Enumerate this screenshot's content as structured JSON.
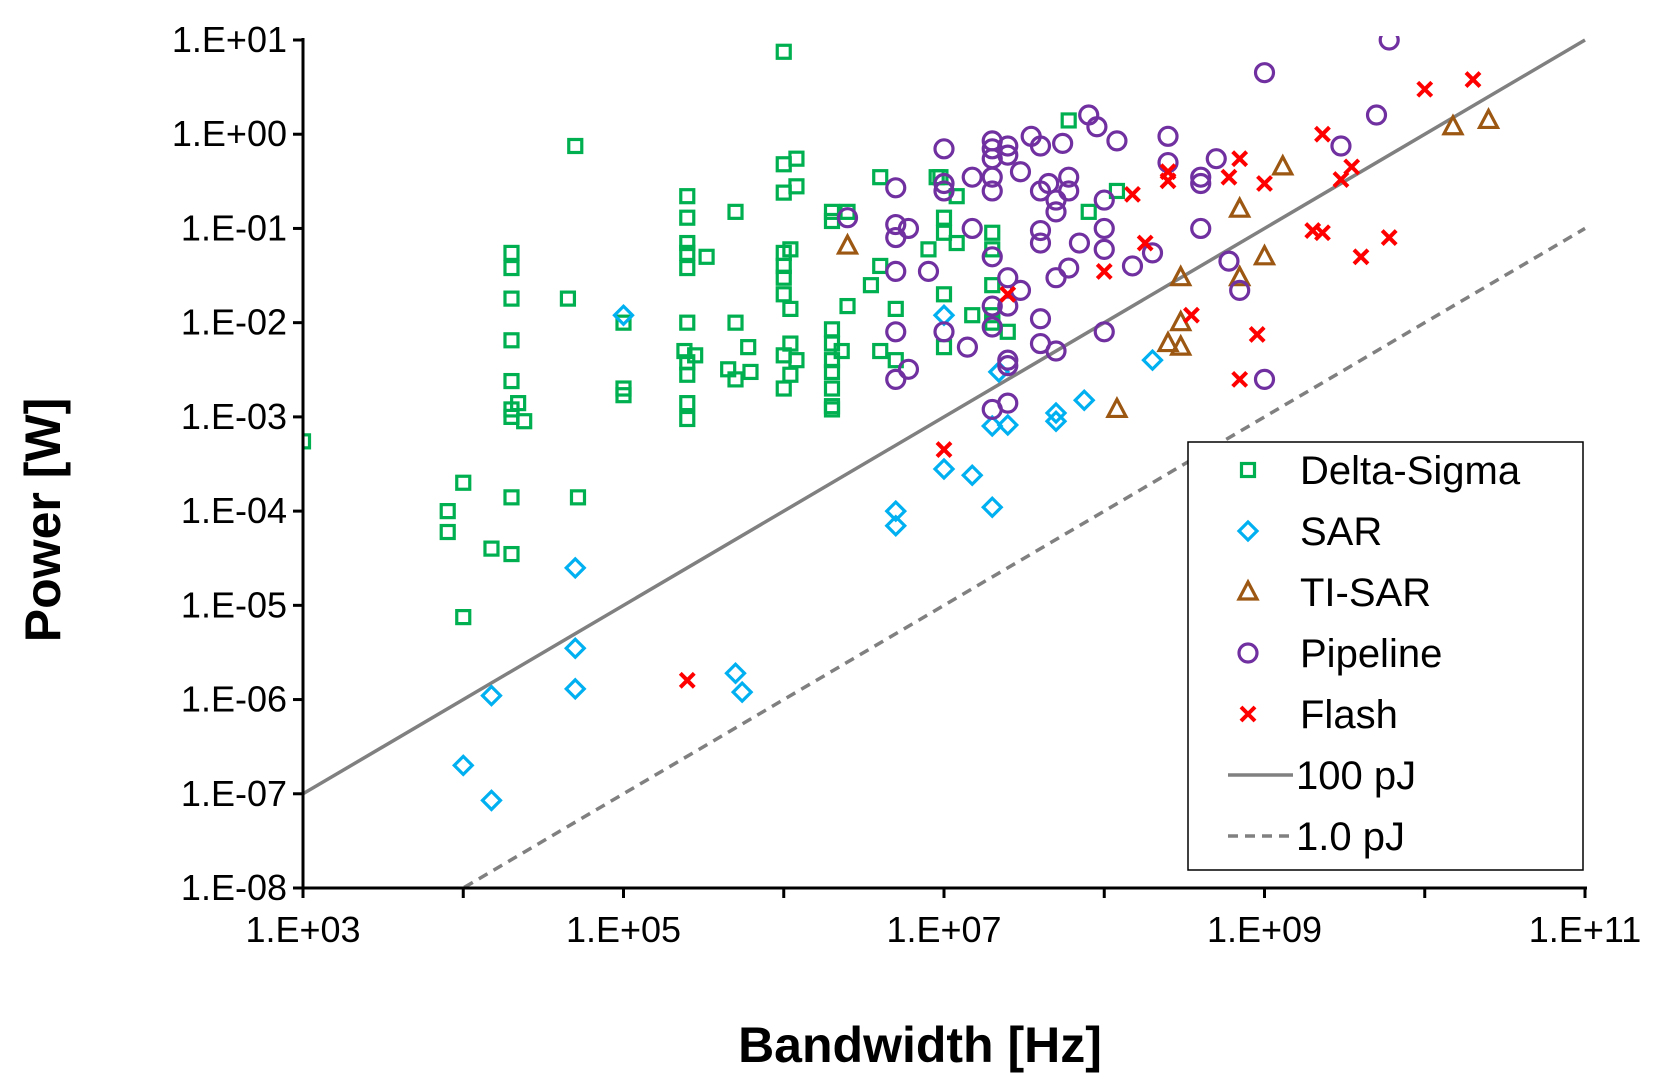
{
  "chart_data": {
    "type": "scatter",
    "xlabel": "Bandwidth [Hz]",
    "ylabel": "Power [W]",
    "x_scale": "log",
    "y_scale": "log",
    "xlim": [
      1000,
      100000000000
    ],
    "ylim": [
      1e-08,
      10
    ],
    "x_ticks": [
      "1.E+03",
      "1.E+05",
      "1.E+07",
      "1.E+09",
      "1.E+11"
    ],
    "y_ticks": [
      "1.E+01",
      "1.E+00",
      "1.E-01",
      "1.E-02",
      "1.E-03",
      "1.E-04",
      "1.E-05",
      "1.E-06",
      "1.E-07",
      "1.E-08"
    ],
    "grid": false,
    "legend_position": "bottom-right",
    "series": [
      {
        "name": "Delta-Sigma",
        "marker": "square",
        "color": "#00b050",
        "points": [
          [
            1000,
            0.00055
          ],
          [
            8000,
            0.0001
          ],
          [
            8000,
            6e-05
          ],
          [
            10000,
            0.0002
          ],
          [
            10000,
            7.5e-06
          ],
          [
            15000,
            4e-05
          ],
          [
            20000,
            3.5e-05
          ],
          [
            20000,
            0.00014
          ],
          [
            20000,
            0.0012
          ],
          [
            20000,
            0.001
          ],
          [
            20000,
            0.0024
          ],
          [
            20000,
            0.0065
          ],
          [
            20000,
            0.018
          ],
          [
            20000,
            0.038
          ],
          [
            20000,
            0.055
          ],
          [
            22000,
            0.0014
          ],
          [
            24000,
            0.0009
          ],
          [
            45000,
            0.018
          ],
          [
            50000,
            0.75
          ],
          [
            52000,
            0.00014
          ],
          [
            100000,
            0.01
          ],
          [
            100000,
            0.002
          ],
          [
            100000,
            0.0017
          ],
          [
            250000,
            0.22
          ],
          [
            250000,
            0.13
          ],
          [
            250000,
            0.07
          ],
          [
            250000,
            0.055
          ],
          [
            250000,
            0.038
          ],
          [
            250000,
            0.01
          ],
          [
            240000,
            0.005
          ],
          [
            250000,
            0.0038
          ],
          [
            250000,
            0.0028
          ],
          [
            250000,
            0.0014
          ],
          [
            250000,
            0.00095
          ],
          [
            330000,
            0.05
          ],
          [
            280000,
            0.0045
          ],
          [
            500000,
            0.15
          ],
          [
            500000,
            0.01
          ],
          [
            600000,
            0.0055
          ],
          [
            450000,
            0.0032
          ],
          [
            500000,
            0.0025
          ],
          [
            620000,
            0.003
          ],
          [
            1000000,
            7.5
          ],
          [
            1000000,
            0.48
          ],
          [
            1000000,
            0.24
          ],
          [
            1200000,
            0.55
          ],
          [
            1200000,
            0.28
          ],
          [
            1000000,
            0.055
          ],
          [
            1100000,
            0.06
          ],
          [
            1000000,
            0.04
          ],
          [
            1000000,
            0.03
          ],
          [
            1000000,
            0.02
          ],
          [
            1100000,
            0.014
          ],
          [
            1100000,
            0.006
          ],
          [
            1000000,
            0.0045
          ],
          [
            1100000,
            0.0028
          ],
          [
            1000000,
            0.002
          ],
          [
            1200000,
            0.004
          ],
          [
            2000000,
            0.15
          ],
          [
            2000000,
            0.12
          ],
          [
            2500000,
            0.15
          ],
          [
            2000000,
            0.0085
          ],
          [
            2000000,
            0.006
          ],
          [
            2000000,
            0.004
          ],
          [
            2000000,
            0.003
          ],
          [
            2000000,
            0.002
          ],
          [
            2000000,
            0.0013
          ],
          [
            2000000,
            0.0012
          ],
          [
            2300000,
            0.005
          ],
          [
            2500000,
            0.015
          ],
          [
            3500000,
            0.025
          ],
          [
            4000000,
            0.04
          ],
          [
            4000000,
            0.35
          ],
          [
            4000000,
            0.005
          ],
          [
            5000000,
            0.014
          ],
          [
            5000000,
            0.004
          ],
          [
            8000000,
            0.06
          ],
          [
            9000000,
            0.35
          ],
          [
            9500000,
            0.35
          ],
          [
            10000000,
            0.13
          ],
          [
            10000000,
            0.09
          ],
          [
            10000000,
            0.02
          ],
          [
            10000000,
            0.0055
          ],
          [
            12000000,
            0.22
          ],
          [
            12000000,
            0.07
          ],
          [
            15000000,
            0.012
          ],
          [
            20000000,
            0.09
          ],
          [
            20000000,
            0.06
          ],
          [
            20000000,
            0.025
          ],
          [
            20000000,
            0.012
          ],
          [
            20000000,
            0.01
          ],
          [
            25000000,
            0.008
          ],
          [
            60000000,
            1.4
          ],
          [
            80000000,
            0.15
          ],
          [
            120000000,
            0.25
          ]
        ]
      },
      {
        "name": "SAR",
        "marker": "diamond",
        "color": "#00b0f0",
        "points": [
          [
            10000,
            2e-07
          ],
          [
            15000,
            8.5e-08
          ],
          [
            15000,
            1.1e-06
          ],
          [
            50000,
            2.5e-05
          ],
          [
            50000,
            3.5e-06
          ],
          [
            50000,
            1.3e-06
          ],
          [
            100000,
            0.012
          ],
          [
            500000,
            1.9e-06
          ],
          [
            550000,
            1.2e-06
          ],
          [
            5000000,
            0.0001
          ],
          [
            5000000,
            7e-05
          ],
          [
            10000000,
            0.00028
          ],
          [
            10000000,
            0.012
          ],
          [
            15000000,
            0.00024
          ],
          [
            20000000,
            0.00011
          ],
          [
            20000000,
            0.0008
          ],
          [
            25000000,
            0.00082
          ],
          [
            22000000,
            0.003
          ],
          [
            50000000,
            0.0011
          ],
          [
            50000000,
            0.0009
          ],
          [
            75000000,
            0.0015
          ],
          [
            200000000,
            0.004
          ]
        ]
      },
      {
        "name": "TI-SAR",
        "marker": "triangle",
        "color": "#9c5712",
        "points": [
          [
            2500000,
            0.065
          ],
          [
            120000000,
            0.0012
          ],
          [
            250000000,
            0.006
          ],
          [
            300000000,
            0.03
          ],
          [
            300000000,
            0.01
          ],
          [
            300000000,
            0.0055
          ],
          [
            700000000,
            0.03
          ],
          [
            700000000,
            0.16
          ],
          [
            1000000000,
            0.05
          ],
          [
            1300000000,
            0.45
          ],
          [
            15000000000,
            1.2
          ],
          [
            25000000000,
            1.4
          ]
        ]
      },
      {
        "name": "Pipeline",
        "marker": "circle",
        "color": "#7030a0",
        "points": [
          [
            2500000,
            0.13
          ],
          [
            5000000,
            0.27
          ],
          [
            5000000,
            0.11
          ],
          [
            6000000,
            0.1
          ],
          [
            5000000,
            0.08
          ],
          [
            5000000,
            0.035
          ],
          [
            5000000,
            0.008
          ],
          [
            5000000,
            0.0025
          ],
          [
            6000000,
            0.0032
          ],
          [
            8000000,
            0.035
          ],
          [
            10000000,
            0.7
          ],
          [
            10000000,
            0.25
          ],
          [
            10000000,
            0.3
          ],
          [
            10000000,
            0.008
          ],
          [
            15000000,
            0.35
          ],
          [
            15000000,
            0.1
          ],
          [
            14000000,
            0.0055
          ],
          [
            20000000,
            0.85
          ],
          [
            20000000,
            0.7
          ],
          [
            20000000,
            0.55
          ],
          [
            20000000,
            0.35
          ],
          [
            20000000,
            0.25
          ],
          [
            20000000,
            0.05
          ],
          [
            20000000,
            0.015
          ],
          [
            20000000,
            0.009
          ],
          [
            20000000,
            0.0012
          ],
          [
            25000000,
            0.75
          ],
          [
            25000000,
            0.6
          ],
          [
            25000000,
            0.03
          ],
          [
            25000000,
            0.015
          ],
          [
            25000000,
            0.004
          ],
          [
            25000000,
            0.0035
          ],
          [
            25000000,
            0.0014
          ],
          [
            30000000,
            0.4
          ],
          [
            30000000,
            0.022
          ],
          [
            35000000,
            0.95
          ],
          [
            40000000,
            0.75
          ],
          [
            40000000,
            0.25
          ],
          [
            40000000,
            0.095
          ],
          [
            40000000,
            0.07
          ],
          [
            40000000,
            0.011
          ],
          [
            40000000,
            0.006
          ],
          [
            45000000,
            0.3
          ],
          [
            50000000,
            0.2
          ],
          [
            50000000,
            0.15
          ],
          [
            55000000,
            0.8
          ],
          [
            50000000,
            0.03
          ],
          [
            50000000,
            0.005
          ],
          [
            60000000,
            0.35
          ],
          [
            60000000,
            0.25
          ],
          [
            60000000,
            0.038
          ],
          [
            70000000,
            0.07
          ],
          [
            80000000,
            1.6
          ],
          [
            90000000,
            1.2
          ],
          [
            100000000,
            0.2
          ],
          [
            100000000,
            0.1
          ],
          [
            100000000,
            0.06
          ],
          [
            100000000,
            0.008
          ],
          [
            120000000,
            0.85
          ],
          [
            150000000,
            0.04
          ],
          [
            200000000,
            0.055
          ],
          [
            250000000,
            0.95
          ],
          [
            250000000,
            0.5
          ],
          [
            400000000,
            0.35
          ],
          [
            400000000,
            0.3
          ],
          [
            400000000,
            0.1
          ],
          [
            500000000,
            0.55
          ],
          [
            600000000,
            0.045
          ],
          [
            700000000,
            0.022
          ],
          [
            1000000000,
            4.5
          ],
          [
            1000000000,
            0.0025
          ],
          [
            3000000000,
            0.75
          ],
          [
            5000000000,
            1.6
          ],
          [
            6000000000,
            10
          ]
        ]
      },
      {
        "name": "Flash",
        "marker": "x",
        "color": "#ff0000",
        "points": [
          [
            250000,
            1.6e-06
          ],
          [
            10000000,
            0.00045
          ],
          [
            25000000,
            0.02
          ],
          [
            100000000,
            0.035
          ],
          [
            150000000,
            0.23
          ],
          [
            180000000,
            0.07
          ],
          [
            250000000,
            0.4
          ],
          [
            250000000,
            0.32
          ],
          [
            350000000,
            0.012
          ],
          [
            600000000,
            0.35
          ],
          [
            700000000,
            0.55
          ],
          [
            700000000,
            0.0025
          ],
          [
            900000000,
            0.0075
          ],
          [
            1000000000,
            0.3
          ],
          [
            2000000000,
            0.095
          ],
          [
            2300000000,
            1
          ],
          [
            2300000000,
            0.09
          ],
          [
            3000000000,
            0.33
          ],
          [
            3500000000,
            0.45
          ],
          [
            4000000000,
            0.05
          ],
          [
            6000000000,
            0.08
          ],
          [
            10000000000,
            3
          ],
          [
            20000000000,
            3.8
          ]
        ]
      }
    ],
    "reference_lines": [
      {
        "name": "100 pJ",
        "energy_J": 1e-10,
        "style": "solid",
        "color": "#808080"
      },
      {
        "name": "1.0 pJ",
        "energy_J": 1e-12,
        "style": "dashed",
        "color": "#808080"
      }
    ]
  }
}
